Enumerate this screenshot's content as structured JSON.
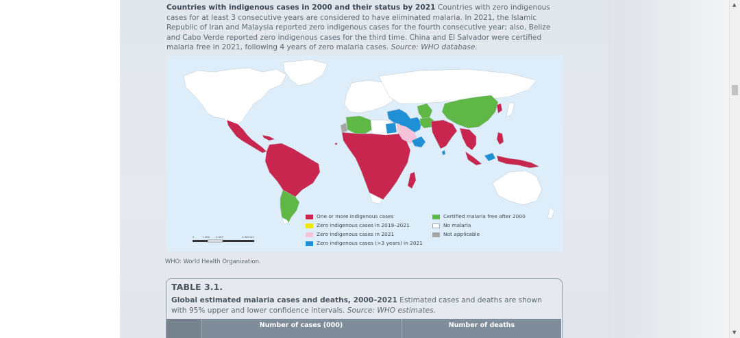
{
  "caption": {
    "bold": "Countries with indigenous cases in 2000 and their status by 2021",
    "text": " Countries with zero indigenous cases for at least 3 consecutive years are considered to have eliminated malaria. In 2021, the Islamic Republic of Iran and Malaysia reported zero indigenous cases for the fourth consecutive year; also, Belize and Cabo Verde reported zero indigenous cases for the third time. China and El Salvador were certified malaria free in 2021, following 4 years of zero malaria cases. ",
    "source": "Source: WHO database."
  },
  "map": {
    "legend": [
      {
        "label": "One or more indigenous cases",
        "color": "#c8254f"
      },
      {
        "label": "Zero indigenous cases in 2019–2021",
        "color": "#f3e600"
      },
      {
        "label": "Zero indigenous cases in 2021",
        "color": "#f6c3db"
      },
      {
        "label": "Zero indigenous cases (>3 years) in 2021",
        "color": "#1f8fd6"
      },
      {
        "label": "Certified malaria free after 2000",
        "color": "#5fb845"
      },
      {
        "label": "No malaria",
        "color": "#ffffff"
      },
      {
        "label": "Not applicable",
        "color": "#a5a5a5"
      }
    ],
    "scale_labels": [
      "0",
      "1 000",
      "2 000",
      "",
      "4 000 km"
    ],
    "colors": {
      "ocean": "#ddeefa",
      "land_none": "#ffffff",
      "border": "#bcc6ce"
    }
  },
  "note": "WHO: World Health Organization.",
  "table": {
    "title": "TABLE 3.1.",
    "caption_bold": "Global estimated malaria cases and deaths, 2000–2021",
    "caption_text": " Estimated cases and deaths are shown with 95% upper and lower confidence intervals. ",
    "caption_source": "Source: WHO estimates.",
    "col1": "Number of cases (000)",
    "col2": "Number of deaths"
  },
  "scrollbar": {
    "up_icon": "triangle-up",
    "down_icon": "triangle-down"
  }
}
